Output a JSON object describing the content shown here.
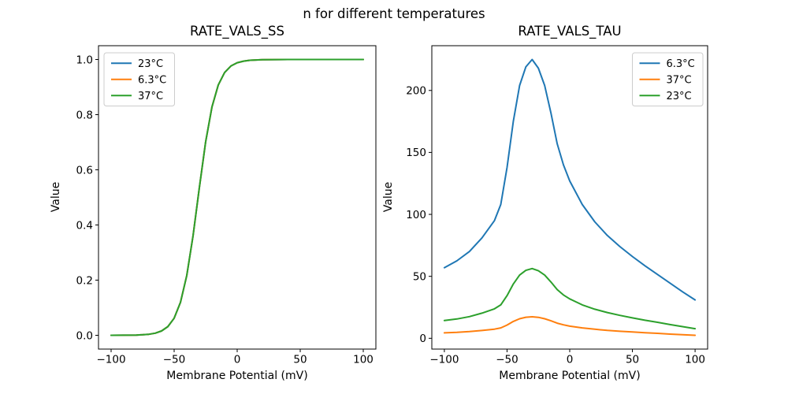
{
  "figure": {
    "suptitle": "n for different temperatures",
    "background": "#ffffff",
    "palette": {
      "blue": "#1f77b4",
      "orange": "#ff7f0e",
      "green": "#2ca02c"
    }
  },
  "chart_data": [
    {
      "type": "line",
      "title": "RATE_VALS_SS",
      "xlabel": "Membrane Potential (mV)",
      "ylabel": "Value",
      "xlim": [
        -110,
        110
      ],
      "ylim": [
        -0.05,
        1.05
      ],
      "grid": false,
      "xticks": [
        {
          "v": -100,
          "label": "−100"
        },
        {
          "v": -50,
          "label": "−50"
        },
        {
          "v": 0,
          "label": "0"
        },
        {
          "v": 50,
          "label": "50"
        },
        {
          "v": 100,
          "label": "100"
        }
      ],
      "yticks": [
        {
          "v": 0.0,
          "label": "0.0"
        },
        {
          "v": 0.2,
          "label": "0.2"
        },
        {
          "v": 0.4,
          "label": "0.4"
        },
        {
          "v": 0.6,
          "label": "0.6"
        },
        {
          "v": 0.8,
          "label": "0.8"
        },
        {
          "v": 1.0,
          "label": "1.0"
        }
      ],
      "legend": {
        "position": "upper-left"
      },
      "x": [
        -100,
        -90,
        -80,
        -75,
        -70,
        -65,
        -60,
        -55,
        -50,
        -45,
        -40,
        -35,
        -30,
        -25,
        -20,
        -15,
        -10,
        -5,
        0,
        5,
        10,
        20,
        30,
        40,
        50,
        60,
        70,
        80,
        90,
        100
      ],
      "series": [
        {
          "name": "23°C",
          "color": "#1f77b4",
          "values": [
            0.0001,
            0.0002,
            0.0009,
            0.0019,
            0.0038,
            0.0077,
            0.0156,
            0.0314,
            0.0621,
            0.1192,
            0.2166,
            0.361,
            0.5357,
            0.7021,
            0.828,
            0.9077,
            0.9526,
            0.9762,
            0.9882,
            0.9941,
            0.9971,
            0.9993,
            0.9998,
            0.9999,
            1.0,
            1.0,
            1.0,
            1.0,
            1.0,
            1.0
          ]
        },
        {
          "name": "6.3°C",
          "color": "#ff7f0e",
          "values": [
            0.0001,
            0.0002,
            0.0009,
            0.0019,
            0.0038,
            0.0077,
            0.0156,
            0.0314,
            0.0621,
            0.1192,
            0.2166,
            0.361,
            0.5357,
            0.7021,
            0.828,
            0.9077,
            0.9526,
            0.9762,
            0.9882,
            0.9941,
            0.9971,
            0.9993,
            0.9998,
            0.9999,
            1.0,
            1.0,
            1.0,
            1.0,
            1.0,
            1.0
          ]
        },
        {
          "name": "37°C",
          "color": "#2ca02c",
          "values": [
            0.0001,
            0.0002,
            0.0009,
            0.0019,
            0.0038,
            0.0077,
            0.0156,
            0.0314,
            0.0621,
            0.1192,
            0.2166,
            0.361,
            0.5357,
            0.7021,
            0.828,
            0.9077,
            0.9526,
            0.9762,
            0.9882,
            0.9941,
            0.9971,
            0.9993,
            0.9998,
            0.9999,
            1.0,
            1.0,
            1.0,
            1.0,
            1.0,
            1.0
          ]
        }
      ]
    },
    {
      "type": "line",
      "title": "RATE_VALS_TAU",
      "xlabel": "Membrane Potential (mV)",
      "ylabel": "Value",
      "xlim": [
        -110,
        110
      ],
      "ylim": [
        -8.7,
        236.1
      ],
      "grid": false,
      "xticks": [
        {
          "v": -100,
          "label": "−100"
        },
        {
          "v": -50,
          "label": "−50"
        },
        {
          "v": 0,
          "label": "0"
        },
        {
          "v": 50,
          "label": "50"
        },
        {
          "v": 100,
          "label": "100"
        }
      ],
      "yticks": [
        {
          "v": 0,
          "label": "0"
        },
        {
          "v": 50,
          "label": "50"
        },
        {
          "v": 100,
          "label": "100"
        },
        {
          "v": 150,
          "label": "150"
        },
        {
          "v": 200,
          "label": "200"
        }
      ],
      "legend": {
        "position": "upper-right"
      },
      "x": [
        -100,
        -90,
        -80,
        -70,
        -60,
        -55,
        -50,
        -45,
        -40,
        -35,
        -30,
        -25,
        -20,
        -15,
        -10,
        -5,
        0,
        10,
        20,
        30,
        40,
        50,
        60,
        70,
        80,
        90,
        100
      ],
      "series": [
        {
          "name": "6.3°C",
          "color": "#1f77b4",
          "values": [
            57,
            62.5,
            70,
            81,
            95,
            108,
            138,
            175,
            204,
            219,
            225,
            218,
            204,
            182,
            157,
            140,
            127,
            108,
            94,
            83,
            74,
            66,
            58.5,
            51.5,
            44.5,
            37.5,
            31
          ]
        },
        {
          "name": "37°C",
          "color": "#ff7f0e",
          "values": [
            4.4,
            4.8,
            5.4,
            6.3,
            7.4,
            8.4,
            10.7,
            13.6,
            15.8,
            17.0,
            17.4,
            16.9,
            15.8,
            14.1,
            12.2,
            10.9,
            9.8,
            8.4,
            7.3,
            6.4,
            5.7,
            5.1,
            4.5,
            4.0,
            3.4,
            2.9,
            2.4
          ]
        },
        {
          "name": "23°C",
          "color": "#2ca02c",
          "values": [
            14.3,
            15.6,
            17.5,
            20.3,
            23.8,
            27.0,
            34.5,
            43.8,
            51.0,
            54.8,
            56.3,
            54.5,
            51.0,
            45.5,
            39.3,
            35.0,
            31.8,
            27.0,
            23.5,
            20.8,
            18.5,
            16.5,
            14.6,
            12.9,
            11.1,
            9.4,
            7.8
          ]
        }
      ]
    }
  ]
}
